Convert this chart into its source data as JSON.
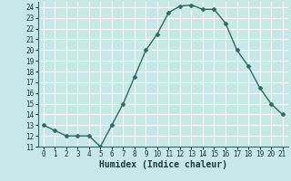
{
  "xlabel": "Humidex (Indice chaleur)",
  "x": [
    0,
    1,
    2,
    3,
    4,
    5,
    6,
    7,
    8,
    9,
    10,
    11,
    12,
    13,
    14,
    15,
    16,
    17,
    18,
    19,
    20,
    21
  ],
  "y": [
    13,
    12.5,
    12,
    12,
    12,
    11,
    13,
    15,
    17.5,
    20,
    21.5,
    23.5,
    24.1,
    24.2,
    23.8,
    23.8,
    22.5,
    20,
    18.5,
    16.5,
    15,
    14
  ],
  "line_color": "#2E6B5E",
  "marker": "D",
  "marker_size": 2.5,
  "bg_color": "#C8E8E8",
  "grid_color": "#ffffff",
  "ylim": [
    11,
    24.5
  ],
  "yticks": [
    11,
    12,
    13,
    14,
    15,
    16,
    17,
    18,
    19,
    20,
    21,
    22,
    23,
    24
  ],
  "xlim": [
    -0.5,
    21.5
  ],
  "xticks": [
    0,
    1,
    2,
    3,
    4,
    5,
    6,
    7,
    8,
    9,
    10,
    11,
    12,
    13,
    14,
    15,
    16,
    17,
    18,
    19,
    20,
    21
  ],
  "tick_fontsize": 5.5,
  "xlabel_fontsize": 7,
  "title_fontsize": 6.5,
  "line_width": 1.0
}
